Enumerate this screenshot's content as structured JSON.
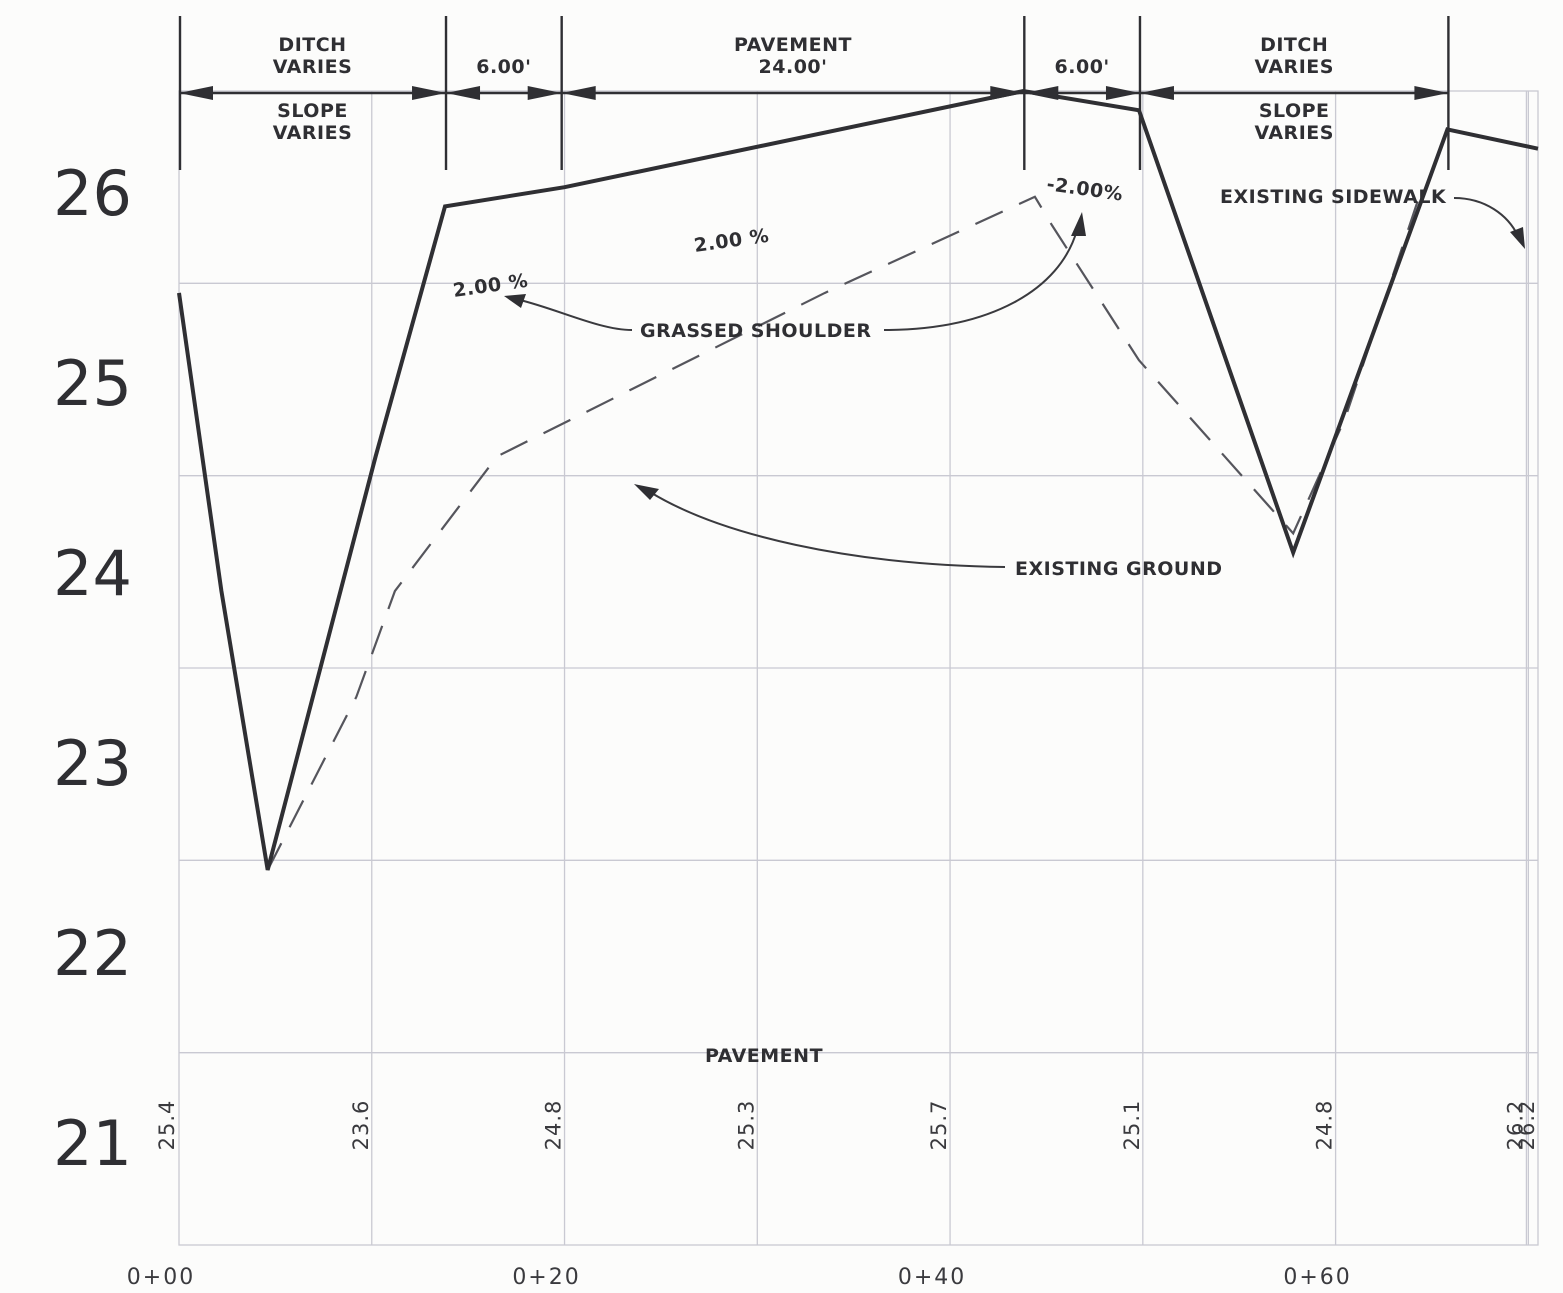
{
  "chart_data": {
    "type": "line",
    "xlim": [
      0,
      70.5
    ],
    "ylim": [
      20.0,
      26.0
    ],
    "x_ticks": [
      "0+00",
      "0+20",
      "0+40",
      "0+60"
    ],
    "y_ticks": [
      "21",
      "22",
      "23",
      "24",
      "25",
      "26"
    ],
    "bottom_elevations": [
      {
        "x": 0,
        "label": "25.4"
      },
      {
        "x": 10,
        "label": "23.6"
      },
      {
        "x": 20,
        "label": "24.8"
      },
      {
        "x": 30,
        "label": "25.3"
      },
      {
        "x": 40,
        "label": "25.7"
      },
      {
        "x": 50,
        "label": "25.1"
      },
      {
        "x": 60,
        "label": "24.8"
      },
      {
        "x": 69.9,
        "label": "26.2"
      },
      {
        "x": 70.5,
        "label": "26.2"
      }
    ],
    "series": [
      {
        "style": "solid",
        "points": [
          [
            0,
            24.95
          ],
          [
            2.2,
            23.4
          ],
          [
            4.6,
            21.95
          ],
          [
            10.2,
            24.1
          ],
          [
            13.8,
            25.4
          ],
          [
            20,
            25.5
          ],
          [
            43.8,
            26.0
          ],
          [
            49.8,
            25.9
          ],
          [
            57.8,
            23.6
          ],
          [
            65.8,
            25.8
          ],
          [
            70.5,
            25.7
          ]
        ]
      },
      {
        "style": "dashed",
        "points": [
          [
            4.6,
            21.95
          ],
          [
            9.2,
            22.85
          ],
          [
            11.2,
            23.4
          ],
          [
            16.5,
            24.1
          ],
          [
            23.5,
            24.45
          ],
          [
            33.5,
            24.95
          ],
          [
            44.4,
            25.45
          ],
          [
            45.3,
            25.3
          ],
          [
            49.8,
            24.6
          ],
          [
            57.8,
            23.7
          ],
          [
            60.5,
            24.3
          ],
          [
            64.5,
            25.5
          ]
        ]
      }
    ]
  },
  "dimensions": {
    "ticks_x": [
      0,
      13.8,
      19.8,
      43.8,
      49.8,
      65.8
    ],
    "segments": [
      {
        "from": 0,
        "to": 13.8,
        "above": [
          "DITCH",
          "VARIES"
        ],
        "below": [
          "SLOPE",
          "VARIES"
        ]
      },
      {
        "from": 13.8,
        "to": 19.8,
        "above": [
          "6.00'"
        ],
        "below": []
      },
      {
        "from": 19.8,
        "to": 43.8,
        "above": [
          "PAVEMENT",
          "24.00'"
        ],
        "below": []
      },
      {
        "from": 43.8,
        "to": 49.8,
        "above": [
          "6.00'"
        ],
        "below": []
      },
      {
        "from": 49.8,
        "to": 65.8,
        "above": [
          "DITCH",
          "VARIES"
        ],
        "below": [
          "SLOPE",
          "VARIES"
        ]
      }
    ]
  },
  "annotations": {
    "slope_left_shoulder": "2.00 %",
    "slope_pavement": "2.00 %",
    "slope_right_shoulder": "-2.00%",
    "grassed_shoulder": "GRASSED SHOULDER",
    "existing_ground": "EXISTING GROUND",
    "existing_sidewalk": "EXISTING SIDEWALK",
    "pavement_bottom": "PAVEMENT"
  }
}
